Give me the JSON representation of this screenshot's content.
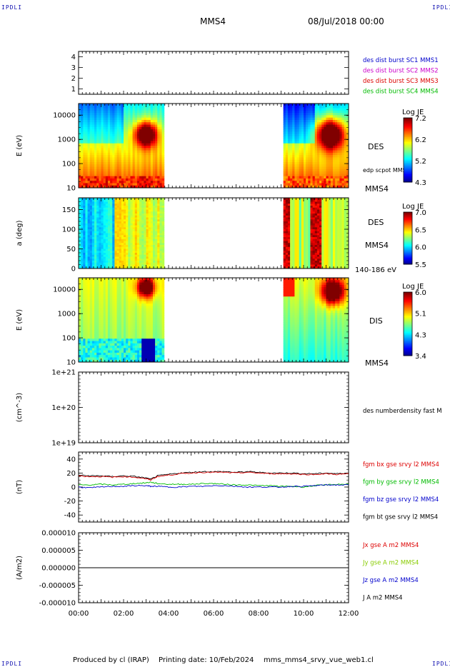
{
  "header": {
    "corner_tl": "IPDLI",
    "corner_tr": "IPDLI",
    "corner_bl": "IPDLI",
    "corner_br": "IPDLI",
    "spacecraft": "MMS4",
    "datetime": "08/Jul/2018 00:00"
  },
  "footer": {
    "produced_by": "Produced by cl (IRAP)",
    "printing_date": "Printing date: 10/Feb/2024",
    "filename": "mms_mms4_srvy_vue_web1.cl"
  },
  "chart_data": {
    "type": "multi-panel",
    "x_axis": {
      "range": [
        "00:00",
        "12:00"
      ],
      "tick_labels": [
        "00:00",
        "02:00",
        "04:00",
        "06:00",
        "08:00",
        "10:00",
        "12:00"
      ]
    },
    "panels": [
      {
        "id": "burst",
        "type": "scatter",
        "ylim": [
          0.5,
          4.5
        ],
        "y_ticks": [
          "4",
          "3",
          "2",
          "1"
        ],
        "legend": [
          {
            "name": "des dist burst SC1 MMS1",
            "color": "#0000cc"
          },
          {
            "name": "des dist burst SC2 MMS2",
            "color": "#cc00cc"
          },
          {
            "name": "des dist burst SC3 MMS3",
            "color": "#dd0000"
          },
          {
            "name": "des dist burst SC4 MMS4",
            "color": "#00bb00"
          }
        ]
      },
      {
        "id": "des_energy",
        "type": "heatmap",
        "ylabel": "E (eV)",
        "yscale": "log",
        "ylim": [
          10,
          30000
        ],
        "y_ticks": [
          "10000",
          "1000",
          "100",
          "10"
        ],
        "data_gap": [
          [
            "03:52",
            "09:05"
          ]
        ],
        "label": "DES",
        "sublabel": "edp scpot MMS4",
        "spacecraft": "MMS4",
        "colorbar": {
          "title": "Log JE",
          "ticks": [
            "7.2",
            "6.2",
            "5.2",
            "4.3"
          ]
        }
      },
      {
        "id": "des_pitch",
        "type": "heatmap",
        "ylabel": "a (deg)",
        "ylim": [
          0,
          180
        ],
        "y_ticks": [
          "150",
          "100",
          "50",
          "0"
        ],
        "data_gap": [
          [
            "03:52",
            "09:05"
          ]
        ],
        "label": "DES",
        "spacecraft": "MMS4",
        "energy_range": "140-186 eV",
        "colorbar": {
          "title": "Log JE",
          "ticks": [
            "7.0",
            "6.5",
            "6.0",
            "5.5"
          ]
        }
      },
      {
        "id": "dis_energy",
        "type": "heatmap",
        "ylabel": "E (eV)",
        "yscale": "log",
        "ylim": [
          10,
          30000
        ],
        "y_ticks": [
          "10000",
          "1000",
          "100",
          "10"
        ],
        "data_gap": [
          [
            "03:52",
            "09:05"
          ]
        ],
        "label": "DIS",
        "spacecraft": "MMS4",
        "colorbar": {
          "title": "Log JE",
          "ticks": [
            "6.0",
            "5.1",
            "4.3",
            "3.4"
          ]
        }
      },
      {
        "id": "density",
        "type": "line",
        "ylabel": "(cm^-3)",
        "yscale": "log",
        "y_ticks": [
          "1e+21",
          "1e+20",
          "1e+19"
        ],
        "legend": [
          {
            "name": "des numberdensity fast M",
            "color": "#000000"
          }
        ]
      },
      {
        "id": "fgm",
        "type": "line",
        "ylabel": "(nT)",
        "ylim": [
          -50,
          50
        ],
        "y_ticks": [
          "40",
          "20",
          "0",
          "-20",
          "-40"
        ],
        "legend": [
          {
            "name": "fgm bx gse srvy l2 MMS4",
            "color": "#dd0000"
          },
          {
            "name": "fgm by gse srvy l2 MMS4",
            "color": "#00bb00"
          },
          {
            "name": "fgm bz gse srvy l2 MMS4",
            "color": "#0000cc"
          },
          {
            "name": "fgm bt gse srvy l2 MMS4",
            "color": "#000000"
          }
        ],
        "series": [
          {
            "name": "fgm bt gse srvy l2 MMS4",
            "x_hours": [
              0,
              0.5,
              1,
              1.5,
              2,
              2.5,
              3,
              3.2,
              3.5,
              4,
              4.5,
              5,
              5.5,
              6,
              6.5,
              7,
              7.5,
              8,
              8.5,
              9,
              9.5,
              10,
              10.5,
              11,
              11.5,
              12
            ],
            "values": [
              17,
              16,
              16,
              15,
              16,
              15,
              13,
              11,
              16,
              18,
              20,
              21,
              22,
              22,
              22,
              21,
              22,
              21,
              20,
              20,
              20,
              19,
              19,
              20,
              19,
              20
            ]
          },
          {
            "name": "fgm bx gse srvy l2 MMS4",
            "x_hours": [
              0,
              0.5,
              1,
              1.5,
              2,
              2.5,
              3,
              3.2,
              3.5,
              4,
              4.5,
              5,
              5.5,
              6,
              6.5,
              7,
              7.5,
              8,
              8.5,
              9,
              9.5,
              10,
              10.5,
              11,
              11.5,
              12
            ],
            "values": [
              16,
              15,
              15,
              14,
              15,
              14,
              12,
              10,
              15,
              17,
              19,
              20,
              21,
              21,
              21,
              20,
              21,
              20,
              19,
              19,
              19,
              18,
              18,
              19,
              18,
              19
            ]
          },
          {
            "name": "fgm by gse srvy l2 MMS4",
            "x_hours": [
              0,
              0.5,
              1,
              1.5,
              2,
              2.5,
              3,
              3.2,
              3.5,
              4,
              4.5,
              5,
              5.5,
              6,
              6.5,
              7,
              7.5,
              8,
              8.5,
              9,
              9.5,
              10,
              10.5,
              11,
              11.5,
              12
            ],
            "values": [
              3,
              3,
              4,
              3,
              4,
              5,
              6,
              7,
              5,
              4,
              4,
              4,
              5,
              5,
              4,
              3,
              3,
              2,
              2,
              1,
              1,
              0,
              2,
              3,
              4,
              4
            ]
          },
          {
            "name": "fgm bz gse srvy l2 MMS4",
            "x_hours": [
              0,
              0.5,
              1,
              1.5,
              2,
              2.5,
              3,
              3.2,
              3.5,
              4,
              4.5,
              5,
              5.5,
              6,
              6.5,
              7,
              7.5,
              8,
              8.5,
              9,
              9.5,
              10,
              10.5,
              11,
              11.5,
              12
            ],
            "values": [
              0,
              -1,
              0,
              1,
              1,
              2,
              2,
              1,
              1,
              0,
              0,
              1,
              1,
              2,
              2,
              1,
              0,
              0,
              0,
              0,
              1,
              1,
              2,
              3,
              3,
              3
            ]
          }
        ]
      },
      {
        "id": "current",
        "type": "line",
        "ylabel": "(A/m2)",
        "ylim": [
          -1e-05,
          1e-05
        ],
        "y_ticks": [
          "0.000010",
          "0.000005",
          "0.000000",
          "-0.000005",
          "-0.000010"
        ],
        "legend": [
          {
            "name": "Jx gse A m2 MMS4",
            "color": "#dd0000"
          },
          {
            "name": "Jy gse A m2 MMS4",
            "color": "#88cc00"
          },
          {
            "name": "Jz gse A m2 MMS4",
            "color": "#0000cc"
          },
          {
            "name": "J A m2 MMS4",
            "color": "#000000"
          }
        ],
        "series": [
          {
            "name": "J A m2 MMS4",
            "x_hours": [
              0,
              12
            ],
            "values": [
              0,
              0
            ]
          }
        ]
      }
    ]
  }
}
